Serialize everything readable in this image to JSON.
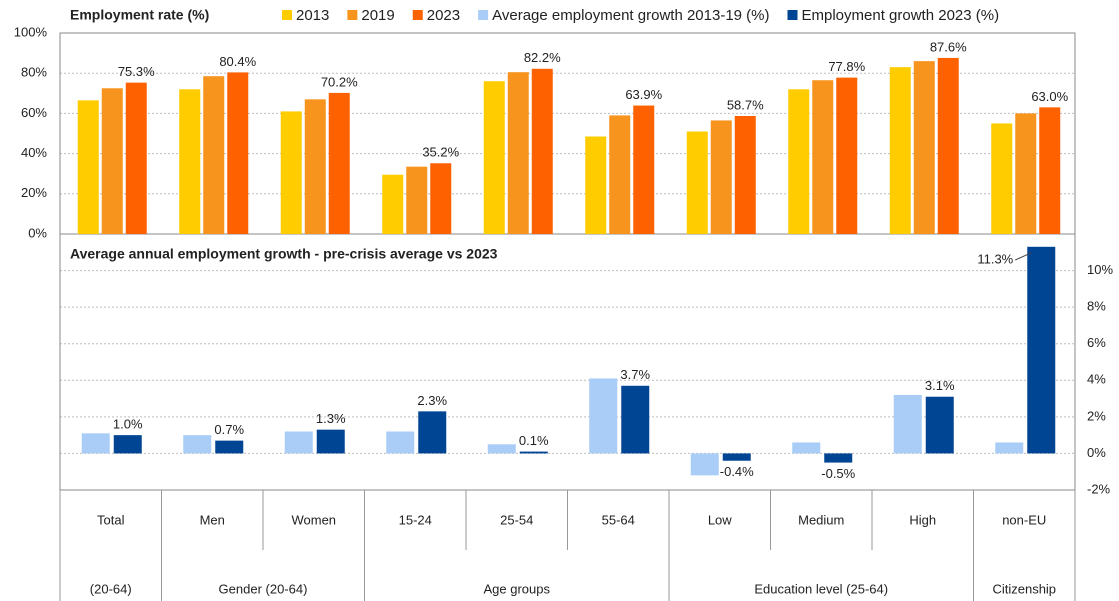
{
  "chart_data": [
    {
      "type": "bar",
      "title": "Employment rate (%)",
      "categories": [
        "Total",
        "Men",
        "Women",
        "15-24",
        "25-54",
        "55-64",
        "Low",
        "Medium",
        "High",
        "non-EU"
      ],
      "groups": [
        {
          "label": "(20-64)",
          "span": 1
        },
        {
          "label": "Gender (20-64)",
          "span": 2
        },
        {
          "label": "Age groups",
          "span": 3
        },
        {
          "label": "Education level (25-64)",
          "span": 3
        },
        {
          "label": "Citizenship",
          "span": 1
        }
      ],
      "series": [
        {
          "name": "2013",
          "color": "#ffcc00",
          "values": [
            66.5,
            72,
            61,
            29.5,
            76,
            48.5,
            51,
            72,
            83,
            55
          ]
        },
        {
          "name": "2019",
          "color": "#f7941d",
          "values": [
            72.5,
            78.5,
            67,
            33.5,
            80.5,
            59,
            56.5,
            76.5,
            86,
            60
          ]
        },
        {
          "name": "2023",
          "color": "#fe6100",
          "values": [
            75.3,
            80.4,
            70.2,
            35.2,
            82.2,
            63.9,
            58.7,
            77.8,
            87.6,
            63.0
          ],
          "value_labels": [
            "75.3%",
            "80.4%",
            "70.2%",
            "35.2%",
            "82.2%",
            "63.9%",
            "58.7%",
            "77.8%",
            "87.6%",
            "63.0%"
          ]
        }
      ],
      "ylim": [
        0,
        100
      ],
      "yticks": [
        {
          "value": 0,
          "label": "0%"
        },
        {
          "value": 20,
          "label": "20%"
        },
        {
          "value": 40,
          "label": "40%"
        },
        {
          "value": 60,
          "label": "60%"
        },
        {
          "value": 80,
          "label": "80%"
        },
        {
          "value": 100,
          "label": "100%"
        }
      ],
      "grid": true
    },
    {
      "type": "bar",
      "title": "Average annual employment growth - pre-crisis average vs 2023",
      "series": [
        {
          "name": "Average employment growth 2013-19 (%)",
          "color": "#a9cdf7",
          "values": [
            1.1,
            1.0,
            1.2,
            1.2,
            0.5,
            4.1,
            -1.2,
            0.6,
            3.2,
            0.6
          ]
        },
        {
          "name": "Employment growth 2023 (%)",
          "color": "#004494",
          "values": [
            1.0,
            0.7,
            1.3,
            2.3,
            0.1,
            3.7,
            -0.4,
            -0.5,
            3.1,
            11.3
          ],
          "value_labels": [
            "1.0%",
            "0.7%",
            "1.3%",
            "2.3%",
            "0.1%",
            "3.7%",
            "-0.4%",
            "-0.5%",
            "3.1%",
            "11.3%"
          ]
        }
      ],
      "ylim": [
        -2,
        12
      ],
      "yticks": [
        {
          "value": -2,
          "label": "-2%"
        },
        {
          "value": 0,
          "label": "0%"
        },
        {
          "value": 2,
          "label": "2%"
        },
        {
          "value": 4,
          "label": "4%"
        },
        {
          "value": 6,
          "label": "6%"
        },
        {
          "value": 8,
          "label": "8%"
        },
        {
          "value": 10,
          "label": "10%"
        }
      ],
      "grid": true
    }
  ]
}
